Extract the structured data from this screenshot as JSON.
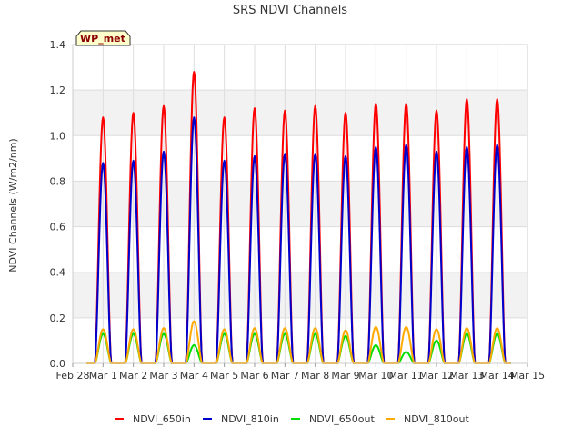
{
  "chart_data": {
    "type": "line",
    "title": "SRS NDVI Channels",
    "xlabel": "",
    "ylabel": "NDVI Channels (W/m2/nm)",
    "ylim": [
      0,
      1.4
    ],
    "yticks": [
      "0.0",
      "0.2",
      "0.4",
      "0.6",
      "0.8",
      "1.0",
      "1.2",
      "1.4"
    ],
    "xlim": [
      0,
      15
    ],
    "xticks": [
      "Feb 28",
      "Mar 1",
      "Mar 2",
      "Mar 3",
      "Mar 4",
      "Mar 5",
      "Mar 6",
      "Mar 7",
      "Mar 8",
      "Mar 9",
      "Mar 10",
      "Mar 11",
      "Mar 12",
      "Mar 13",
      "Mar 14",
      "Mar 15"
    ],
    "grid": true,
    "legend_position": "bottom",
    "annotation": "WP_met",
    "day_peak_offset": 0.5,
    "day_half_width": 0.27,
    "series": [
      {
        "name": "NDVI_650in",
        "color": "#ff0000",
        "peaks": [
          1.08,
          1.1,
          1.13,
          1.28,
          1.08,
          1.12,
          1.11,
          1.13,
          1.1,
          1.14,
          1.14,
          1.11,
          1.16,
          1.16
        ]
      },
      {
        "name": "NDVI_810in",
        "color": "#0000cc",
        "peaks": [
          0.88,
          0.89,
          0.93,
          1.08,
          0.89,
          0.91,
          0.92,
          0.92,
          0.91,
          0.95,
          0.96,
          0.93,
          0.95,
          0.96
        ]
      },
      {
        "name": "NDVI_650out",
        "color": "#00dd00",
        "peaks": [
          0.13,
          0.13,
          0.13,
          0.08,
          0.13,
          0.13,
          0.13,
          0.13,
          0.12,
          0.08,
          0.05,
          0.1,
          0.13,
          0.13
        ]
      },
      {
        "name": "NDVI_810out",
        "color": "#ffaa00",
        "peaks": [
          0.15,
          0.15,
          0.155,
          0.185,
          0.15,
          0.155,
          0.155,
          0.155,
          0.145,
          0.16,
          0.16,
          0.15,
          0.155,
          0.155
        ]
      }
    ]
  }
}
